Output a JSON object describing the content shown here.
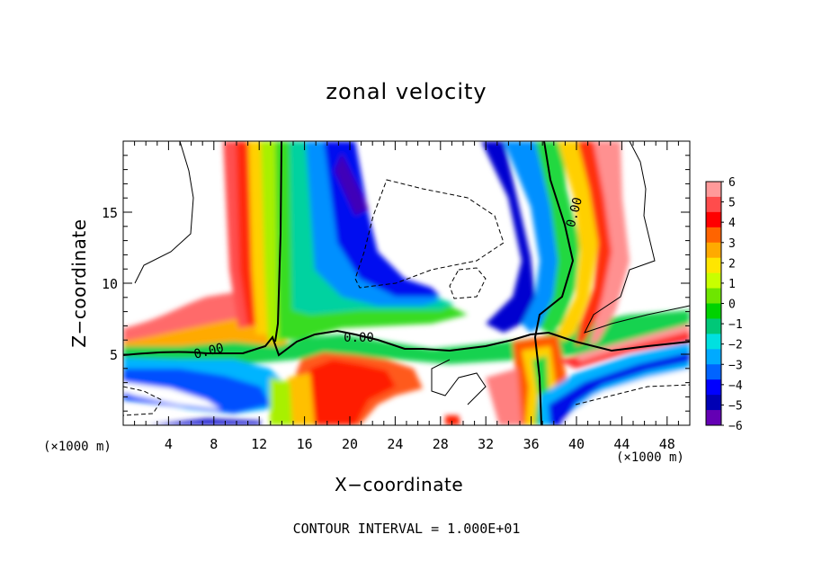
{
  "chart_data": {
    "type": "heatmap",
    "title": "zonal velocity",
    "xlabel": "X−coordinate",
    "ylabel": "Z−coordinate",
    "x_unit_left": "(×1000 m)",
    "x_unit_right": "(×1000 m)",
    "xlim": [
      0,
      50
    ],
    "ylim": [
      0,
      20
    ],
    "x_ticks": [
      4,
      8,
      12,
      16,
      20,
      24,
      28,
      32,
      36,
      40,
      44,
      48
    ],
    "y_ticks": [
      5,
      10,
      15
    ],
    "colorbar": {
      "labels": [
        "6",
        "5",
        "4",
        "3",
        "2",
        "1",
        "0",
        "−1",
        "−2",
        "−3",
        "−4",
        "−5",
        "−6"
      ],
      "colors": [
        "#ff9a9a",
        "#ff4c4c",
        "#ff0000",
        "#ff6400",
        "#ffaa00",
        "#ffe600",
        "#c8ff00",
        "#6ee600",
        "#00d200",
        "#00c878",
        "#00e0e0",
        "#00aaff",
        "#0064ff",
        "#0000ff",
        "#0000b4",
        "#6400b4"
      ]
    },
    "contour_labels": [
      "0.00",
      "0.00",
      "0.00"
    ],
    "footnote": "CONTOUR INTERVAL = 1.000E+01"
  }
}
